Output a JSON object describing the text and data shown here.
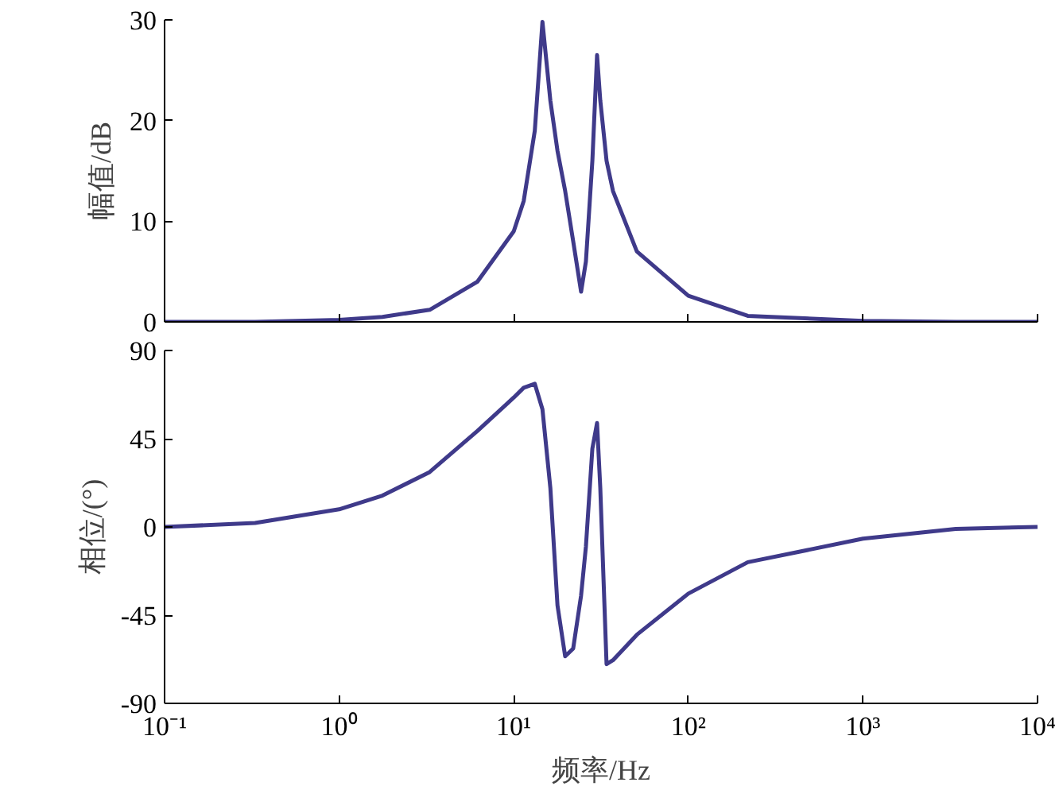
{
  "chart_data": [
    {
      "type": "line",
      "ylabel": "幅值/dB",
      "log": "x",
      "xlim": [
        0.1,
        10000
      ],
      "xticks": [
        {
          "value": 0.1,
          "label": null
        },
        {
          "value": 1,
          "label": null
        },
        {
          "value": 10,
          "label": null
        },
        {
          "value": 100,
          "label": null
        },
        {
          "value": 1000,
          "label": null
        },
        {
          "value": 10000,
          "label": null
        }
      ],
      "ylim": [
        0,
        30
      ],
      "yticks": [
        0,
        10,
        20,
        30
      ],
      "tick_labels": "y",
      "grid": false,
      "marker": "none",
      "line_style": "solid",
      "series": [
        {
          "color": "#3f3a8a",
          "x": [
            0.1,
            0.33,
            1,
            1.77,
            3.3,
            6.2,
            10,
            11.4,
            13.2,
            14.6,
            16.2,
            17.8,
            19.7,
            21.9,
            24.3,
            25.9,
            28.2,
            30,
            31.3,
            34,
            37,
            50.7,
            100,
            219,
            1000,
            3400,
            10000
          ],
          "values": [
            0,
            0,
            0.2,
            0.5,
            1.2,
            4,
            9,
            12,
            19,
            29.8,
            22,
            17,
            13,
            8,
            3,
            6,
            16,
            26.5,
            22,
            16,
            13,
            7,
            2.6,
            0.6,
            0.1,
            0,
            0
          ]
        }
      ]
    },
    {
      "type": "line",
      "xlabel": "频率/Hz",
      "ylabel": "相位/(°)",
      "log": "x",
      "xlim": [
        0.1,
        10000
      ],
      "xticks": [
        {
          "value": 0.1,
          "label": "10⁻¹"
        },
        {
          "value": 1,
          "label": "10⁰"
        },
        {
          "value": 10,
          "label": "10¹"
        },
        {
          "value": 100,
          "label": "10²"
        },
        {
          "value": 1000,
          "label": "10³"
        },
        {
          "value": 10000,
          "label": "10⁴"
        }
      ],
      "ylim": [
        -90,
        90
      ],
      "yticks": [
        -90,
        -45,
        0,
        45,
        90
      ],
      "grid": false,
      "marker": "none",
      "line_style": "solid",
      "series": [
        {
          "color": "#3f3a8a",
          "x": [
            0.1,
            0.33,
            1,
            1.77,
            3.3,
            6.2,
            10,
            11.4,
            13.2,
            14.6,
            16.2,
            17.8,
            19.7,
            21.9,
            24.3,
            25.9,
            28.2,
            30,
            31.3,
            34,
            37,
            50.7,
            100,
            219,
            1000,
            3400,
            10000
          ],
          "values": [
            0,
            2,
            9,
            16,
            28,
            49,
            66,
            71,
            73,
            60,
            20,
            -40,
            -66,
            -62,
            -35,
            -10,
            40,
            53,
            20,
            -70,
            -68,
            -55,
            -34,
            -18,
            -6,
            -1,
            0
          ]
        }
      ]
    }
  ]
}
